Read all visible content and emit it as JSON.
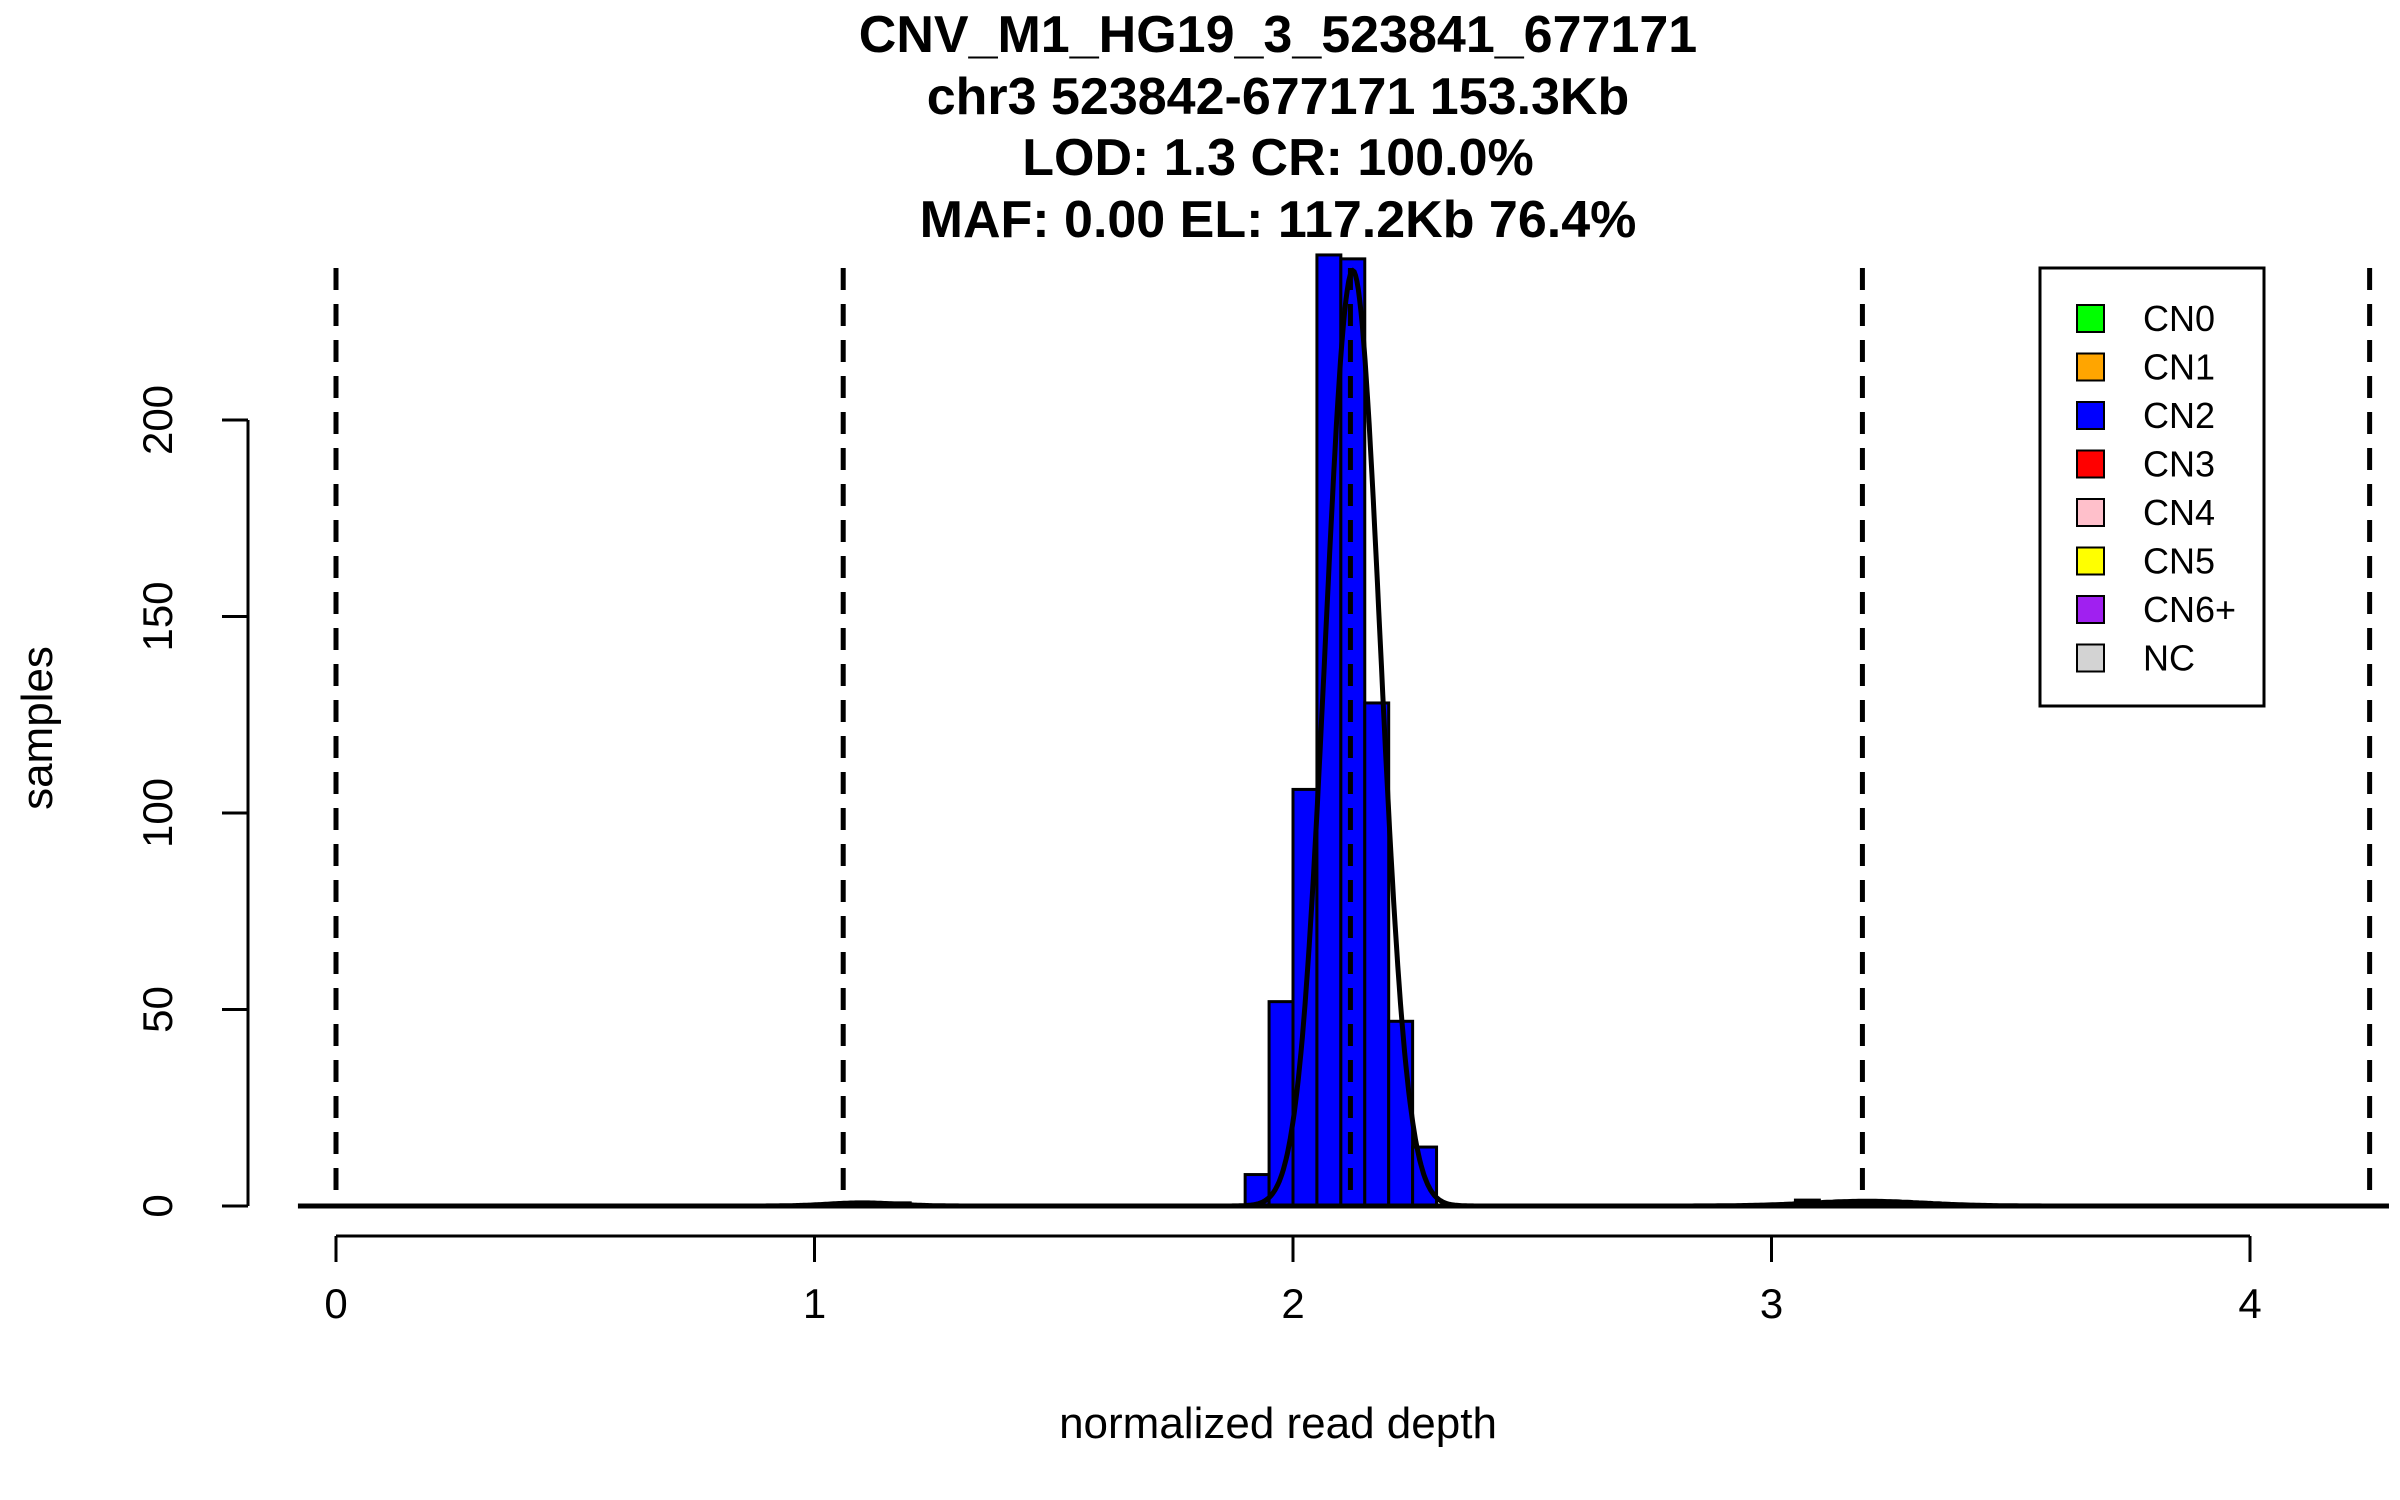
{
  "chart_data": {
    "type": "bar",
    "title_lines": [
      "CNV_M1_HG19_3_523841_677171",
      "chr3 523842-677171 153.3Kb",
      "LOD: 1.3 CR: 100.0%",
      "MAF: 0.00 EL: 117.2Kb 76.4%"
    ],
    "xlabel": "normalized read depth",
    "ylabel": "samples",
    "xlim": [
      -0.09,
      4.28
    ],
    "ylim": [
      0,
      242
    ],
    "xticks": [
      0,
      1,
      2,
      3,
      4
    ],
    "yticks": [
      0,
      50,
      100,
      150,
      200
    ],
    "bin_width": 0.05,
    "bars": [
      {
        "x0": 1.9,
        "count": 8,
        "class": "CN2"
      },
      {
        "x0": 1.95,
        "count": 52,
        "class": "CN2"
      },
      {
        "x0": 2.0,
        "count": 106,
        "class": "CN2"
      },
      {
        "x0": 2.05,
        "count": 242,
        "class": "CN2"
      },
      {
        "x0": 2.1,
        "count": 241,
        "class": "CN2"
      },
      {
        "x0": 2.15,
        "count": 128,
        "class": "CN2"
      },
      {
        "x0": 2.2,
        "count": 47,
        "class": "CN2"
      },
      {
        "x0": 2.25,
        "count": 15,
        "class": "CN2"
      },
      {
        "x0": 1.15,
        "count": 0.8,
        "class": "CN1"
      },
      {
        "x0": 3.05,
        "count": 1.5,
        "class": "CN3"
      }
    ],
    "cutoffs": [
      0.0,
      1.06,
      3.19,
      4.25,
      2.12
    ],
    "density_curves": [
      {
        "mean": 2.125,
        "sd": 0.057,
        "peak": 238
      },
      {
        "mean": 1.1,
        "sd": 0.07,
        "peak": 0.8
      },
      {
        "mean": 3.2,
        "sd": 0.12,
        "peak": 1.2
      }
    ],
    "legend": {
      "position": "top-right",
      "entries": [
        {
          "label": "CN0",
          "color": "#00ff00"
        },
        {
          "label": "CN1",
          "color": "#ffa500"
        },
        {
          "label": "CN2",
          "color": "#0000ff"
        },
        {
          "label": "CN3",
          "color": "#ff0000"
        },
        {
          "label": "CN4",
          "color": "#ffc0cb"
        },
        {
          "label": "CN5",
          "color": "#ffff00"
        },
        {
          "label": "CN6+",
          "color": "#a020f0"
        },
        {
          "label": "NC",
          "color": "#d3d3d3"
        }
      ]
    },
    "colors": {
      "CN1": "#ffa500",
      "CN2": "#0000ff",
      "CN3": "#ff0000"
    }
  }
}
